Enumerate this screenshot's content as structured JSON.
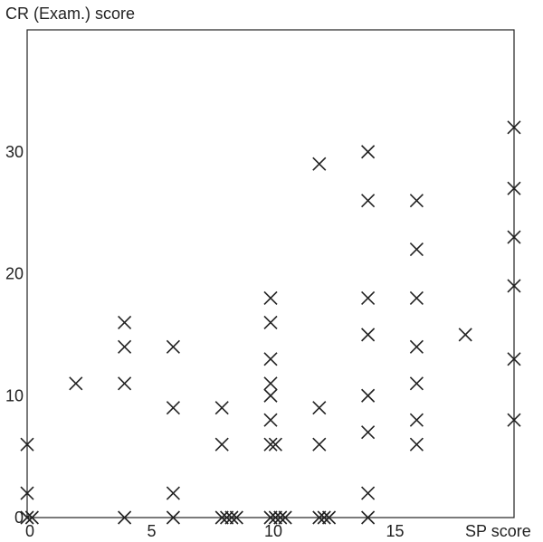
{
  "chart_data": {
    "type": "scatter",
    "title": "",
    "xlabel": "SP score",
    "ylabel": "CR (Exam.) score",
    "xlim": [
      0,
      20
    ],
    "ylim": [
      0,
      40
    ],
    "x_ticks": [
      "0",
      "5",
      "10",
      "15"
    ],
    "y_ticks": [
      "0",
      "10",
      "20",
      "30"
    ],
    "marker": "x",
    "grid": false,
    "series": [
      {
        "points": [
          [
            0,
            6
          ],
          [
            0,
            2
          ],
          [
            0,
            0
          ],
          [
            0.2,
            0
          ],
          [
            2,
            11
          ],
          [
            4,
            16
          ],
          [
            4,
            14
          ],
          [
            4,
            11
          ],
          [
            4,
            0
          ],
          [
            6,
            14
          ],
          [
            6,
            9
          ],
          [
            6,
            2
          ],
          [
            6,
            0
          ],
          [
            8,
            9
          ],
          [
            8,
            6
          ],
          [
            8,
            0
          ],
          [
            8.2,
            0
          ],
          [
            8.4,
            0
          ],
          [
            8.6,
            0
          ],
          [
            10,
            18
          ],
          [
            10,
            16
          ],
          [
            10,
            13
          ],
          [
            10,
            11
          ],
          [
            10,
            10
          ],
          [
            10,
            8
          ],
          [
            10,
            6
          ],
          [
            10.2,
            6
          ],
          [
            10,
            0
          ],
          [
            10.2,
            0
          ],
          [
            10.4,
            0
          ],
          [
            10.6,
            0
          ],
          [
            12,
            29
          ],
          [
            12,
            9
          ],
          [
            12,
            6
          ],
          [
            12,
            0
          ],
          [
            12.2,
            0
          ],
          [
            12.4,
            0
          ],
          [
            14,
            30
          ],
          [
            14,
            26
          ],
          [
            14,
            18
          ],
          [
            14,
            15
          ],
          [
            14,
            10
          ],
          [
            14,
            7
          ],
          [
            14,
            2
          ],
          [
            14,
            0
          ],
          [
            16,
            26
          ],
          [
            16,
            22
          ],
          [
            16,
            18
          ],
          [
            16,
            14
          ],
          [
            16,
            11
          ],
          [
            16,
            8
          ],
          [
            16,
            6
          ],
          [
            18,
            15
          ],
          [
            20,
            32
          ],
          [
            20,
            27
          ],
          [
            20,
            23
          ],
          [
            20,
            19
          ],
          [
            20,
            13
          ],
          [
            20,
            8
          ]
        ]
      }
    ]
  }
}
